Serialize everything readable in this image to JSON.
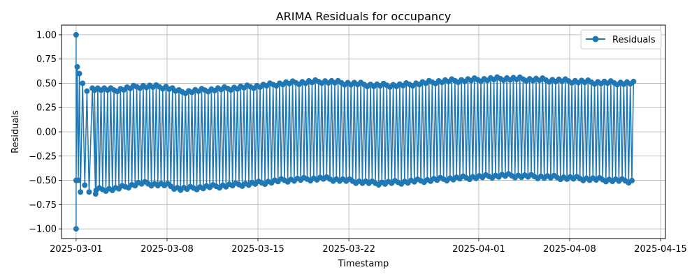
{
  "chart_data": {
    "type": "line",
    "title": "ARIMA Residuals for occupancy",
    "xlabel": "Timestamp",
    "ylabel": "Residuals",
    "x_range": [
      "2025-02-27T21:00",
      "2025-04-15T09:00"
    ],
    "y_range": [
      -1.1,
      1.1
    ],
    "x_ticks": [
      "2025-03-01",
      "2025-03-08",
      "2025-03-15",
      "2025-03-22",
      "2025-04-01",
      "2025-04-08",
      "2025-04-15"
    ],
    "y_ticks": [
      1.0,
      0.75,
      0.5,
      0.25,
      0.0,
      -0.25,
      -0.5,
      -0.75,
      -1.0
    ],
    "y_tick_labels": [
      "1.00",
      "0.75",
      "0.50",
      "0.25",
      "0.00",
      "−0.25",
      "−0.50",
      "−0.75",
      "−1.00"
    ],
    "grid": true,
    "legend_position": "top-right",
    "marker": "circle",
    "series": [
      {
        "name": "Residuals",
        "color": "#1f77b4",
        "start": "2025-03-01T00:00",
        "end": "2025-04-13T00:00",
        "initial_points": [
          {
            "x": "2025-03-01T00:00",
            "y": 1.0
          },
          {
            "x": "2025-03-01T00:00",
            "y": -1.0
          },
          {
            "x": "2025-03-01T00:00",
            "y": -0.5
          },
          {
            "x": "2025-03-01T02:00",
            "y": 0.67
          },
          {
            "x": "2025-03-01T04:00",
            "y": -0.5
          },
          {
            "x": "2025-03-01T06:00",
            "y": 0.6
          },
          {
            "x": "2025-03-01T08:00",
            "y": -0.62
          },
          {
            "x": "2025-03-01T12:00",
            "y": 0.5
          },
          {
            "x": "2025-03-01T16:00",
            "y": -0.55
          },
          {
            "x": "2025-03-01T20:00",
            "y": 0.42
          },
          {
            "x": "2025-03-02T00:00",
            "y": -0.62
          },
          {
            "x": "2025-03-02T06:00",
            "y": 0.45
          },
          {
            "x": "2025-03-02T12:00",
            "y": -0.64
          }
        ],
        "upper_envelope": [
          {
            "x": "2025-03-02",
            "y": 0.45
          },
          {
            "x": "2025-03-04",
            "y": 0.43
          },
          {
            "x": "2025-03-06",
            "y": 0.47
          },
          {
            "x": "2025-03-08",
            "y": 0.46
          },
          {
            "x": "2025-03-09",
            "y": 0.41
          },
          {
            "x": "2025-03-11",
            "y": 0.43
          },
          {
            "x": "2025-03-15",
            "y": 0.47
          },
          {
            "x": "2025-03-17",
            "y": 0.5
          },
          {
            "x": "2025-03-20",
            "y": 0.52
          },
          {
            "x": "2025-03-24",
            "y": 0.48
          },
          {
            "x": "2025-03-26",
            "y": 0.48
          },
          {
            "x": "2025-03-29",
            "y": 0.52
          },
          {
            "x": "2025-04-03",
            "y": 0.55
          },
          {
            "x": "2025-04-07",
            "y": 0.53
          },
          {
            "x": "2025-04-10",
            "y": 0.51
          },
          {
            "x": "2025-04-13",
            "y": 0.5
          }
        ],
        "lower_envelope": [
          {
            "x": "2025-03-02",
            "y": -0.6
          },
          {
            "x": "2025-03-04",
            "y": -0.59
          },
          {
            "x": "2025-03-06",
            "y": -0.53
          },
          {
            "x": "2025-03-08",
            "y": -0.55
          },
          {
            "x": "2025-03-09",
            "y": -0.59
          },
          {
            "x": "2025-03-11",
            "y": -0.57
          },
          {
            "x": "2025-03-15",
            "y": -0.53
          },
          {
            "x": "2025-03-17",
            "y": -0.5
          },
          {
            "x": "2025-03-20",
            "y": -0.48
          },
          {
            "x": "2025-03-24",
            "y": -0.53
          },
          {
            "x": "2025-03-26",
            "y": -0.52
          },
          {
            "x": "2025-03-29",
            "y": -0.49
          },
          {
            "x": "2025-04-03",
            "y": -0.45
          },
          {
            "x": "2025-04-07",
            "y": -0.47
          },
          {
            "x": "2025-04-10",
            "y": -0.49
          },
          {
            "x": "2025-04-13",
            "y": -0.51
          }
        ]
      }
    ]
  }
}
